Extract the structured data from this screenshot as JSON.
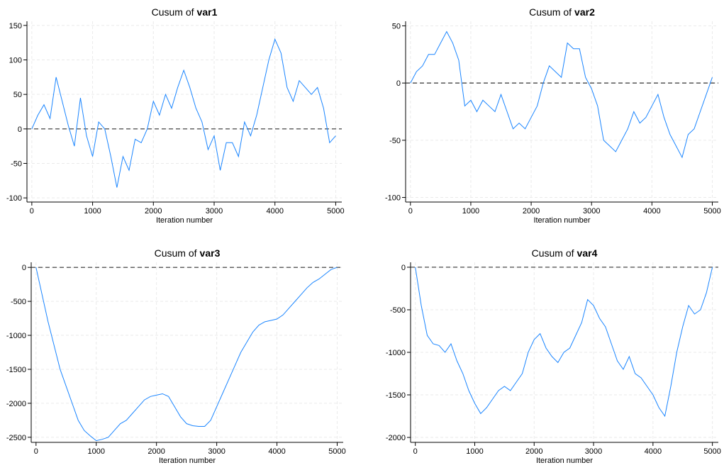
{
  "chart_data": [
    {
      "type": "line",
      "title": "Cusum of",
      "xlabel": "Iteration number",
      "x": [
        0,
        100,
        200,
        300,
        400,
        500,
        600,
        700,
        800,
        900,
        1000,
        1100,
        1200,
        1300,
        1400,
        1500,
        1600,
        1700,
        1800,
        1900,
        2000,
        2100,
        2200,
        2300,
        2400,
        2500,
        2600,
        2700,
        2800,
        2900,
        3000,
        3100,
        3200,
        3300,
        3400,
        3500,
        3600,
        3700,
        3800,
        3900,
        4000,
        4100,
        4200,
        4300,
        4400,
        4500,
        4600,
        4700,
        4800,
        4900,
        5000
      ],
      "series": [
        {
          "name": "var1",
          "color": "#1a85ff",
          "values": [
            0,
            20,
            35,
            15,
            75,
            40,
            5,
            -25,
            45,
            -10,
            -40,
            10,
            0,
            -40,
            -85,
            -40,
            -60,
            -15,
            -20,
            0,
            40,
            20,
            50,
            30,
            60,
            85,
            60,
            30,
            10,
            -30,
            -10,
            -60,
            -20,
            -20,
            -40,
            10,
            -10,
            20,
            60,
            100,
            130,
            110,
            60,
            40,
            70,
            60,
            50,
            60,
            30,
            -20,
            -10
          ]
        }
      ],
      "xlim": [
        -80,
        5100
      ],
      "xticks": [
        0,
        1000,
        2000,
        3000,
        4000,
        5000
      ],
      "ylim": [
        -106,
        156
      ],
      "yticks": [
        -100,
        -50,
        0,
        50,
        100,
        150
      ],
      "hline": 0,
      "grid": true
    },
    {
      "type": "line",
      "title": "Cusum of",
      "xlabel": "Iteration number",
      "x": [
        0,
        100,
        200,
        300,
        400,
        500,
        600,
        700,
        800,
        900,
        1000,
        1100,
        1200,
        1300,
        1400,
        1500,
        1600,
        1700,
        1800,
        1900,
        2000,
        2100,
        2200,
        2300,
        2400,
        2500,
        2600,
        2700,
        2800,
        2900,
        3000,
        3100,
        3200,
        3300,
        3400,
        3500,
        3600,
        3700,
        3800,
        3900,
        4000,
        4100,
        4200,
        4300,
        4400,
        4500,
        4600,
        4700,
        4800,
        4900,
        5000
      ],
      "series": [
        {
          "name": "var2",
          "color": "#1a85ff",
          "values": [
            0,
            10,
            15,
            25,
            25,
            35,
            45,
            35,
            20,
            -20,
            -15,
            -25,
            -15,
            -20,
            -25,
            -10,
            -25,
            -40,
            -35,
            -40,
            -30,
            -20,
            0,
            15,
            10,
            5,
            35,
            30,
            30,
            5,
            -5,
            -20,
            -50,
            -55,
            -60,
            -50,
            -40,
            -25,
            -35,
            -30,
            -20,
            -10,
            -30,
            -45,
            -55,
            -65,
            -45,
            -40,
            -25,
            -10,
            5
          ]
        }
      ],
      "xlim": [
        -80,
        5100
      ],
      "xticks": [
        0,
        1000,
        2000,
        3000,
        4000,
        5000
      ],
      "ylim": [
        -104,
        54
      ],
      "yticks": [
        -100,
        -50,
        0,
        50
      ],
      "hline": 0,
      "grid": true
    },
    {
      "type": "line",
      "title": "Cusum of",
      "xlabel": "Iteration number",
      "x": [
        0,
        100,
        200,
        300,
        400,
        500,
        600,
        700,
        800,
        900,
        1000,
        1100,
        1200,
        1300,
        1400,
        1500,
        1600,
        1700,
        1800,
        1900,
        2000,
        2100,
        2200,
        2300,
        2400,
        2500,
        2600,
        2700,
        2800,
        2900,
        3000,
        3100,
        3200,
        3300,
        3400,
        3500,
        3600,
        3700,
        3800,
        3900,
        4000,
        4100,
        4200,
        4300,
        4400,
        4500,
        4600,
        4700,
        4800,
        4900,
        5000
      ],
      "series": [
        {
          "name": "var3",
          "color": "#1a85ff",
          "values": [
            0,
            -400,
            -800,
            -1150,
            -1500,
            -1750,
            -2000,
            -2250,
            -2400,
            -2480,
            -2550,
            -2530,
            -2500,
            -2400,
            -2300,
            -2250,
            -2150,
            -2050,
            -1950,
            -1900,
            -1880,
            -1860,
            -1900,
            -2050,
            -2200,
            -2300,
            -2330,
            -2340,
            -2340,
            -2250,
            -2050,
            -1850,
            -1650,
            -1450,
            -1250,
            -1100,
            -950,
            -850,
            -800,
            -780,
            -760,
            -700,
            -600,
            -500,
            -400,
            -300,
            -220,
            -170,
            -100,
            -30,
            0
          ]
        }
      ],
      "xlim": [
        -80,
        5100
      ],
      "xticks": [
        0,
        1000,
        2000,
        3000,
        4000,
        5000
      ],
      "ylim": [
        -2575,
        75
      ],
      "yticks": [
        -2500,
        -2000,
        -1500,
        -1000,
        -500,
        0
      ],
      "hline": 0,
      "grid": true
    },
    {
      "type": "line",
      "title": "Cusum of",
      "xlabel": "Iteration number",
      "x": [
        0,
        100,
        200,
        300,
        400,
        500,
        600,
        700,
        800,
        900,
        1000,
        1100,
        1200,
        1300,
        1400,
        1500,
        1600,
        1700,
        1800,
        1900,
        2000,
        2100,
        2200,
        2300,
        2400,
        2500,
        2600,
        2700,
        2800,
        2900,
        3000,
        3100,
        3200,
        3300,
        3400,
        3500,
        3600,
        3700,
        3800,
        3900,
        4000,
        4100,
        4200,
        4300,
        4400,
        4500,
        4600,
        4700,
        4800,
        4900,
        5000
      ],
      "series": [
        {
          "name": "var4",
          "color": "#1a85ff",
          "values": [
            0,
            -450,
            -800,
            -900,
            -920,
            -1000,
            -900,
            -1100,
            -1250,
            -1450,
            -1600,
            -1720,
            -1650,
            -1550,
            -1450,
            -1400,
            -1450,
            -1350,
            -1250,
            -1000,
            -850,
            -780,
            -950,
            -1050,
            -1120,
            -1000,
            -950,
            -800,
            -650,
            -380,
            -450,
            -600,
            -700,
            -900,
            -1100,
            -1200,
            -1050,
            -1250,
            -1300,
            -1400,
            -1500,
            -1650,
            -1750,
            -1400,
            -1000,
            -700,
            -450,
            -550,
            -500,
            -300,
            0
          ]
        }
      ],
      "xlim": [
        -80,
        5100
      ],
      "xticks": [
        0,
        1000,
        2000,
        3000,
        4000,
        5000
      ],
      "ylim": [
        -2058,
        58
      ],
      "yticks": [
        -2000,
        -1500,
        -1000,
        -500,
        0
      ],
      "hline": 0,
      "grid": true
    }
  ]
}
